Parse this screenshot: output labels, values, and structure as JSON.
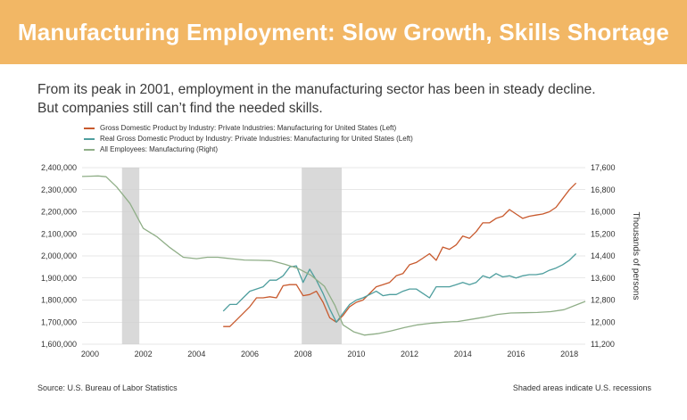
{
  "header": {
    "title": "Manufacturing Employment: Slow Growth, Skills Shortage"
  },
  "intro": {
    "line1": "From its peak in 2001, employment in the manufacturing sector has been in steady decline.",
    "line2": "But companies still can’t find the needed skills."
  },
  "colors": {
    "banner": "#f2b765",
    "gdp": "#c85a2e",
    "real_gdp": "#4e9e9e",
    "employment": "#8fae87",
    "recession": "#d9d9d9"
  },
  "chart_data": {
    "type": "line",
    "xlim": [
      1999.7,
      2018.6
    ],
    "x_ticks": [
      2000,
      2002,
      2004,
      2006,
      2008,
      2010,
      2012,
      2014,
      2016,
      2018
    ],
    "ylim_left": [
      1600000,
      2400000
    ],
    "left_ticks": [
      1600000,
      1700000,
      1800000,
      1900000,
      2000000,
      2100000,
      2200000,
      2300000,
      2400000
    ],
    "left_tick_labels": [
      "1,600,000",
      "1,700,000",
      "1,800,000",
      "1,900,000",
      "2,000,000",
      "2,100,000",
      "2,200,000",
      "2,300,000",
      "2,400,000"
    ],
    "ylim_right": [
      11200,
      17600
    ],
    "right_ticks": [
      11200,
      12000,
      12800,
      13600,
      14400,
      15200,
      16000,
      16800,
      17600
    ],
    "right_tick_labels": [
      "11,200",
      "12,000",
      "12,800",
      "13,600",
      "14,400",
      "15,200",
      "16,000",
      "16,800",
      "17,600"
    ],
    "ylabel_right": "Thousands of persons",
    "recessions": [
      [
        2001.2,
        2001.85
      ],
      [
        2007.95,
        2009.45
      ]
    ],
    "series": [
      {
        "name": "Gross Domestic Product by Industry: Private Industries: Manufacturing for United States (Left)",
        "axis": "left",
        "x": [
          2005.0,
          2005.25,
          2005.5,
          2005.75,
          2006.0,
          2006.25,
          2006.5,
          2006.75,
          2007.0,
          2007.25,
          2007.5,
          2007.75,
          2008.0,
          2008.25,
          2008.5,
          2008.75,
          2009.0,
          2009.25,
          2009.5,
          2009.75,
          2010.0,
          2010.25,
          2010.5,
          2010.75,
          2011.0,
          2011.25,
          2011.5,
          2011.75,
          2012.0,
          2012.25,
          2012.5,
          2012.75,
          2013.0,
          2013.25,
          2013.5,
          2013.75,
          2014.0,
          2014.25,
          2014.5,
          2014.75,
          2015.0,
          2015.25,
          2015.5,
          2015.75,
          2016.0,
          2016.25,
          2016.5,
          2016.75,
          2017.0,
          2017.25,
          2017.5,
          2017.75,
          2018.0,
          2018.25
        ],
        "values": [
          1680000,
          1680000,
          1710000,
          1740000,
          1770000,
          1810000,
          1810000,
          1815000,
          1810000,
          1865000,
          1870000,
          1870000,
          1820000,
          1825000,
          1840000,
          1790000,
          1720000,
          1700000,
          1730000,
          1770000,
          1790000,
          1800000,
          1830000,
          1860000,
          1870000,
          1880000,
          1910000,
          1920000,
          1960000,
          1970000,
          1990000,
          2010000,
          1980000,
          2040000,
          2030000,
          2050000,
          2090000,
          2080000,
          2110000,
          2150000,
          2150000,
          2170000,
          2180000,
          2210000,
          2190000,
          2170000,
          2180000,
          2185000,
          2190000,
          2200000,
          2220000,
          2260000,
          2300000,
          2330000
        ]
      },
      {
        "name": "Real Gross Domestic Product by Industry: Private Industries: Manufacturing for United States (Left)",
        "axis": "left",
        "x": [
          2005.0,
          2005.25,
          2005.5,
          2005.75,
          2006.0,
          2006.25,
          2006.5,
          2006.75,
          2007.0,
          2007.25,
          2007.5,
          2007.75,
          2008.0,
          2008.25,
          2008.5,
          2008.75,
          2009.0,
          2009.25,
          2009.5,
          2009.75,
          2010.0,
          2010.25,
          2010.5,
          2010.75,
          2011.0,
          2011.25,
          2011.5,
          2011.75,
          2012.0,
          2012.25,
          2012.5,
          2012.75,
          2013.0,
          2013.25,
          2013.5,
          2013.75,
          2014.0,
          2014.25,
          2014.5,
          2014.75,
          2015.0,
          2015.25,
          2015.5,
          2015.75,
          2016.0,
          2016.25,
          2016.5,
          2016.75,
          2017.0,
          2017.25,
          2017.5,
          2017.75,
          2018.0,
          2018.25
        ],
        "values": [
          1750000,
          1780000,
          1780000,
          1810000,
          1840000,
          1850000,
          1860000,
          1890000,
          1890000,
          1910000,
          1950000,
          1955000,
          1880000,
          1940000,
          1890000,
          1830000,
          1760000,
          1700000,
          1740000,
          1780000,
          1800000,
          1810000,
          1825000,
          1840000,
          1820000,
          1825000,
          1825000,
          1840000,
          1850000,
          1850000,
          1830000,
          1810000,
          1860000,
          1860000,
          1860000,
          1870000,
          1880000,
          1870000,
          1880000,
          1910000,
          1900000,
          1920000,
          1905000,
          1910000,
          1900000,
          1910000,
          1915000,
          1915000,
          1920000,
          1935000,
          1945000,
          1960000,
          1980000,
          2010000
        ]
      },
      {
        "name": "All Employees: Manufacturing (Right)",
        "axis": "right",
        "x": [
          1999.7,
          2000.0,
          2000.3,
          2000.6,
          2001.0,
          2001.5,
          2002.0,
          2002.5,
          2003.0,
          2003.5,
          2004.0,
          2004.4,
          2004.8,
          2005.3,
          2005.8,
          2006.3,
          2006.8,
          2007.3,
          2007.8,
          2008.3,
          2008.8,
          2009.2,
          2009.5,
          2009.9,
          2010.3,
          2010.8,
          2011.3,
          2011.8,
          2012.3,
          2012.8,
          2013.3,
          2013.8,
          2014.3,
          2014.8,
          2015.3,
          2015.8,
          2016.3,
          2016.8,
          2017.3,
          2017.8,
          2018.6
        ],
        "values": [
          17280,
          17290,
          17300,
          17270,
          16900,
          16300,
          15400,
          15100,
          14700,
          14350,
          14300,
          14350,
          14350,
          14300,
          14250,
          14240,
          14230,
          14100,
          13950,
          13700,
          13300,
          12600,
          11900,
          11650,
          11530,
          11580,
          11680,
          11800,
          11900,
          11960,
          12000,
          12020,
          12100,
          12180,
          12280,
          12330,
          12340,
          12350,
          12380,
          12450,
          12750
        ]
      }
    ]
  },
  "footer": {
    "source": "Source: U.S. Bureau of Labor Statistics",
    "note": "Shaded areas indicate U.S. recessions"
  }
}
